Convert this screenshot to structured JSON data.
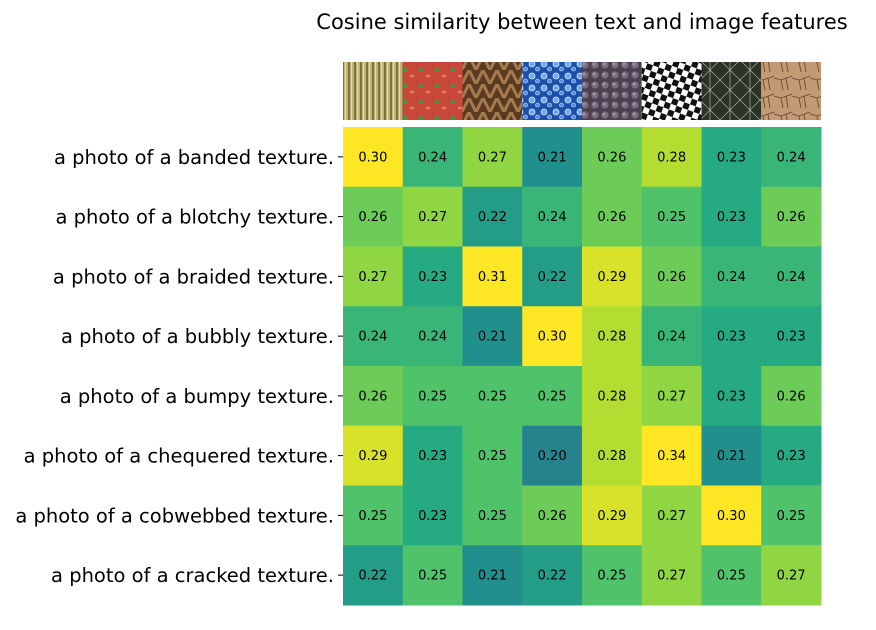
{
  "chart_data": {
    "type": "heatmap",
    "title": "Cosine similarity between text and image features",
    "rows": [
      "a photo of a banded texture.",
      "a photo of a blotchy texture.",
      "a photo of a braided texture.",
      "a photo of a bubbly texture.",
      "a photo of a bumpy texture.",
      "a photo of a chequered texture.",
      "a photo of a cobwebbed texture.",
      "a photo of a cracked texture."
    ],
    "columns": [
      "banded",
      "blotchy",
      "braided",
      "bubbly",
      "bumpy",
      "chequered",
      "cobwebbed",
      "cracked"
    ],
    "column_thumbnails": [
      "banded-texture-image",
      "blotchy-texture-image",
      "braided-texture-image",
      "bubbly-texture-image",
      "bumpy-texture-image",
      "chequered-texture-image",
      "cobwebbed-texture-image",
      "cracked-texture-image"
    ],
    "values": [
      [
        0.3,
        0.24,
        0.27,
        0.21,
        0.26,
        0.28,
        0.23,
        0.24
      ],
      [
        0.26,
        0.27,
        0.22,
        0.24,
        0.26,
        0.25,
        0.23,
        0.26
      ],
      [
        0.27,
        0.23,
        0.31,
        0.22,
        0.29,
        0.26,
        0.24,
        0.24
      ],
      [
        0.24,
        0.24,
        0.21,
        0.3,
        0.28,
        0.24,
        0.23,
        0.23
      ],
      [
        0.26,
        0.25,
        0.25,
        0.25,
        0.28,
        0.27,
        0.23,
        0.26
      ],
      [
        0.29,
        0.23,
        0.25,
        0.2,
        0.28,
        0.34,
        0.21,
        0.23
      ],
      [
        0.25,
        0.23,
        0.25,
        0.26,
        0.29,
        0.27,
        0.3,
        0.25
      ],
      [
        0.22,
        0.25,
        0.21,
        0.22,
        0.25,
        0.27,
        0.25,
        0.27
      ]
    ],
    "colormap": "viridis",
    "vmin": 0.12,
    "vmax": 0.3,
    "value_format": "2 decimals"
  }
}
